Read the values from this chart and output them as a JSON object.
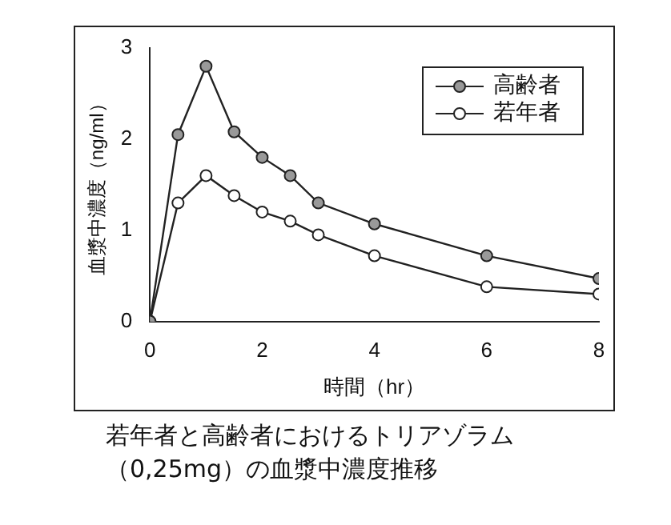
{
  "chart_data": {
    "type": "line",
    "xlabel": "時間（hr）",
    "ylabel": "血漿中濃度（ng/ml）",
    "x": [
      0,
      0.5,
      1,
      1.5,
      2,
      2.5,
      3,
      4,
      6,
      8
    ],
    "series": [
      {
        "name": "高齢者",
        "color": "#999999",
        "values": [
          0,
          2.05,
          2.8,
          2.08,
          1.8,
          1.6,
          1.3,
          1.07,
          0.72,
          0.47
        ]
      },
      {
        "name": "若年者",
        "color": "#ffffff",
        "values": [
          0,
          1.3,
          1.6,
          1.38,
          1.2,
          1.1,
          0.95,
          0.72,
          0.38,
          0.3
        ]
      }
    ],
    "xlim": [
      0,
      8
    ],
    "xticks": [
      0,
      2,
      4,
      6,
      8
    ],
    "ylim": [
      0,
      3
    ],
    "yticks": [
      0,
      1,
      2,
      3
    ],
    "grid": false,
    "legend": "top right",
    "marker": "circle",
    "line_style": "solid",
    "annotations": [
      "若年者と高齢者におけるトリアゾラム（0,25mg）の血漿中濃度推移"
    ]
  }
}
